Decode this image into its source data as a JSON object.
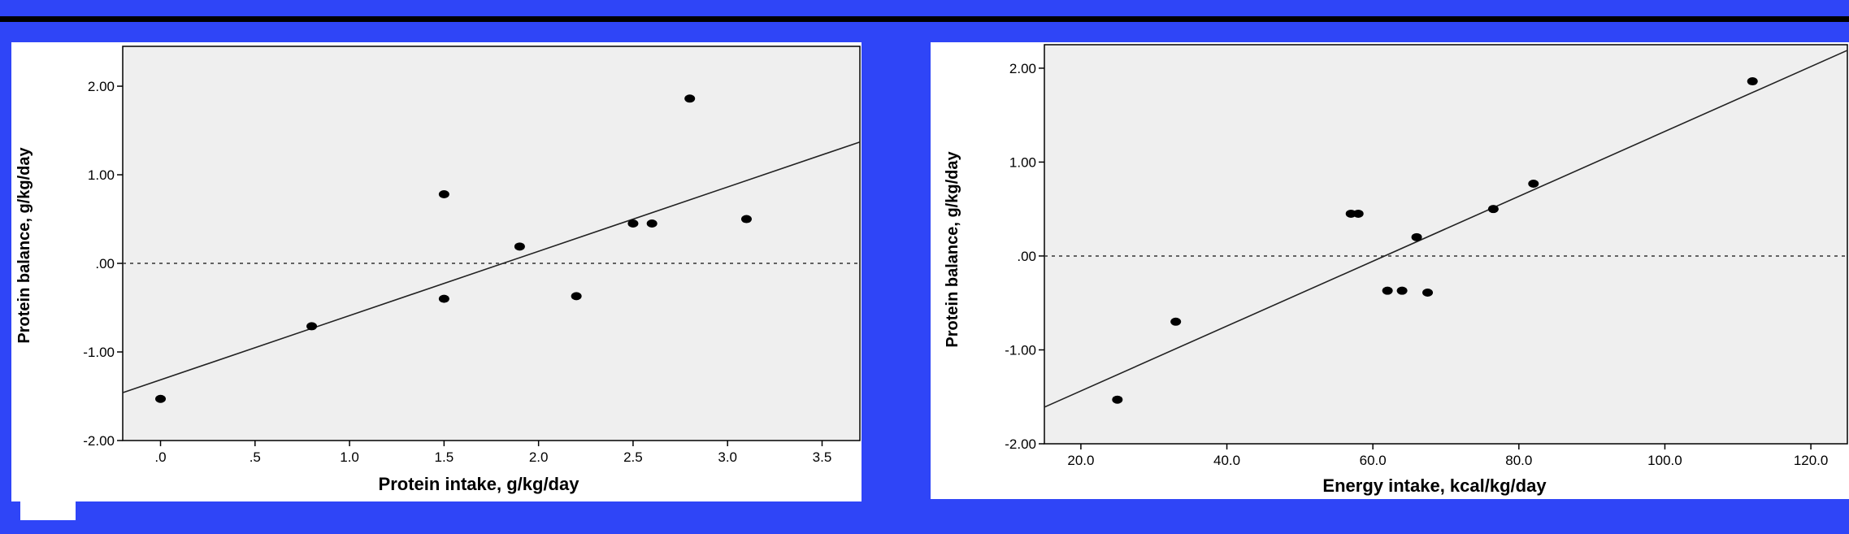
{
  "colors": {
    "background": "#2f45f7",
    "plot_area": "#efefef",
    "marker": "#000000"
  },
  "chart_data": [
    {
      "type": "scatter",
      "title": "",
      "xlabel": "Protein intake, g/kg/day",
      "ylabel": "Protein balance, g/kg/day",
      "xlim": [
        -0.2,
        3.7
      ],
      "ylim": [
        -2.0,
        2.45
      ],
      "xticks": [
        0,
        0.5,
        1.0,
        1.5,
        2.0,
        2.5,
        3.0,
        3.5
      ],
      "xtick_labels": [
        ".0",
        ".5",
        "1.0",
        "1.5",
        "2.0",
        "2.5",
        "3.0",
        "3.5"
      ],
      "yticks": [
        2.0,
        1.0,
        0.0,
        -1.0,
        -2.0
      ],
      "ytick_labels": [
        "2.00",
        "1.00",
        ".00",
        "-1.00",
        "-2.00"
      ],
      "reference_line_y": 0,
      "fit_line": {
        "x": [
          -0.2,
          3.7
        ],
        "y": [
          -1.46,
          1.37
        ]
      },
      "points": {
        "x": [
          0.0,
          0.8,
          1.5,
          1.5,
          1.9,
          2.2,
          2.5,
          2.6,
          2.8,
          3.1
        ],
        "y": [
          -1.53,
          -0.71,
          0.78,
          -0.4,
          0.19,
          -0.37,
          0.45,
          0.45,
          1.86,
          0.5
        ]
      },
      "grid": false,
      "legend": "none"
    },
    {
      "type": "scatter",
      "title": "",
      "xlabel": "Energy intake, kcal/kg/day",
      "ylabel": "Protein balance, g/kg/day",
      "xlim": [
        15,
        125
      ],
      "ylim": [
        -2.0,
        2.25
      ],
      "xticks": [
        20,
        40,
        60,
        80,
        100,
        120
      ],
      "xtick_labels": [
        "20.0",
        "40.0",
        "60.0",
        "80.0",
        "100.0",
        "120.0"
      ],
      "yticks": [
        2.0,
        1.0,
        0.0,
        -1.0,
        -2.0
      ],
      "ytick_labels": [
        "2.00",
        "1.00",
        ".00",
        "-1.00",
        "-2.00"
      ],
      "reference_line_y": 0,
      "fit_line": {
        "x": [
          15,
          125
        ],
        "y": [
          -1.61,
          2.19
        ]
      },
      "points": {
        "x": [
          25,
          33,
          57,
          58,
          62,
          64,
          66,
          67.5,
          76.5,
          82,
          112
        ],
        "y": [
          -1.53,
          -0.7,
          0.45,
          0.45,
          -0.37,
          -0.37,
          0.2,
          -0.39,
          0.5,
          0.77,
          1.86
        ]
      },
      "grid": false,
      "legend": "none"
    }
  ]
}
